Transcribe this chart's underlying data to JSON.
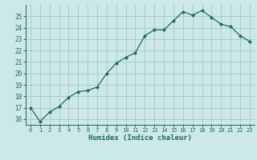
{
  "x": [
    0,
    1,
    2,
    3,
    4,
    5,
    6,
    7,
    8,
    9,
    10,
    11,
    12,
    13,
    14,
    15,
    16,
    17,
    18,
    19,
    20,
    21,
    22,
    23
  ],
  "y": [
    17.0,
    15.8,
    16.6,
    17.1,
    17.9,
    18.4,
    18.5,
    18.8,
    20.0,
    20.9,
    21.4,
    21.8,
    23.3,
    23.8,
    23.8,
    24.6,
    25.4,
    25.1,
    25.5,
    24.9,
    24.3,
    24.1,
    23.3,
    22.8
  ],
  "xlabel": "Humidex (Indice chaleur)",
  "bg_color": "#cce8e8",
  "grid_color": "#aacccc",
  "line_color": "#1a6b5a",
  "marker_color": "#1a6b5a",
  "tick_label_color": "#1a6b5a",
  "xlabel_color": "#1a6b5a",
  "ylim": [
    15.5,
    26.0
  ],
  "xlim": [
    -0.5,
    23.5
  ],
  "yticks": [
    16,
    17,
    18,
    19,
    20,
    21,
    22,
    23,
    24,
    25
  ],
  "xticks": [
    0,
    1,
    2,
    3,
    4,
    5,
    6,
    7,
    8,
    9,
    10,
    11,
    12,
    13,
    14,
    15,
    16,
    17,
    18,
    19,
    20,
    21,
    22,
    23
  ]
}
